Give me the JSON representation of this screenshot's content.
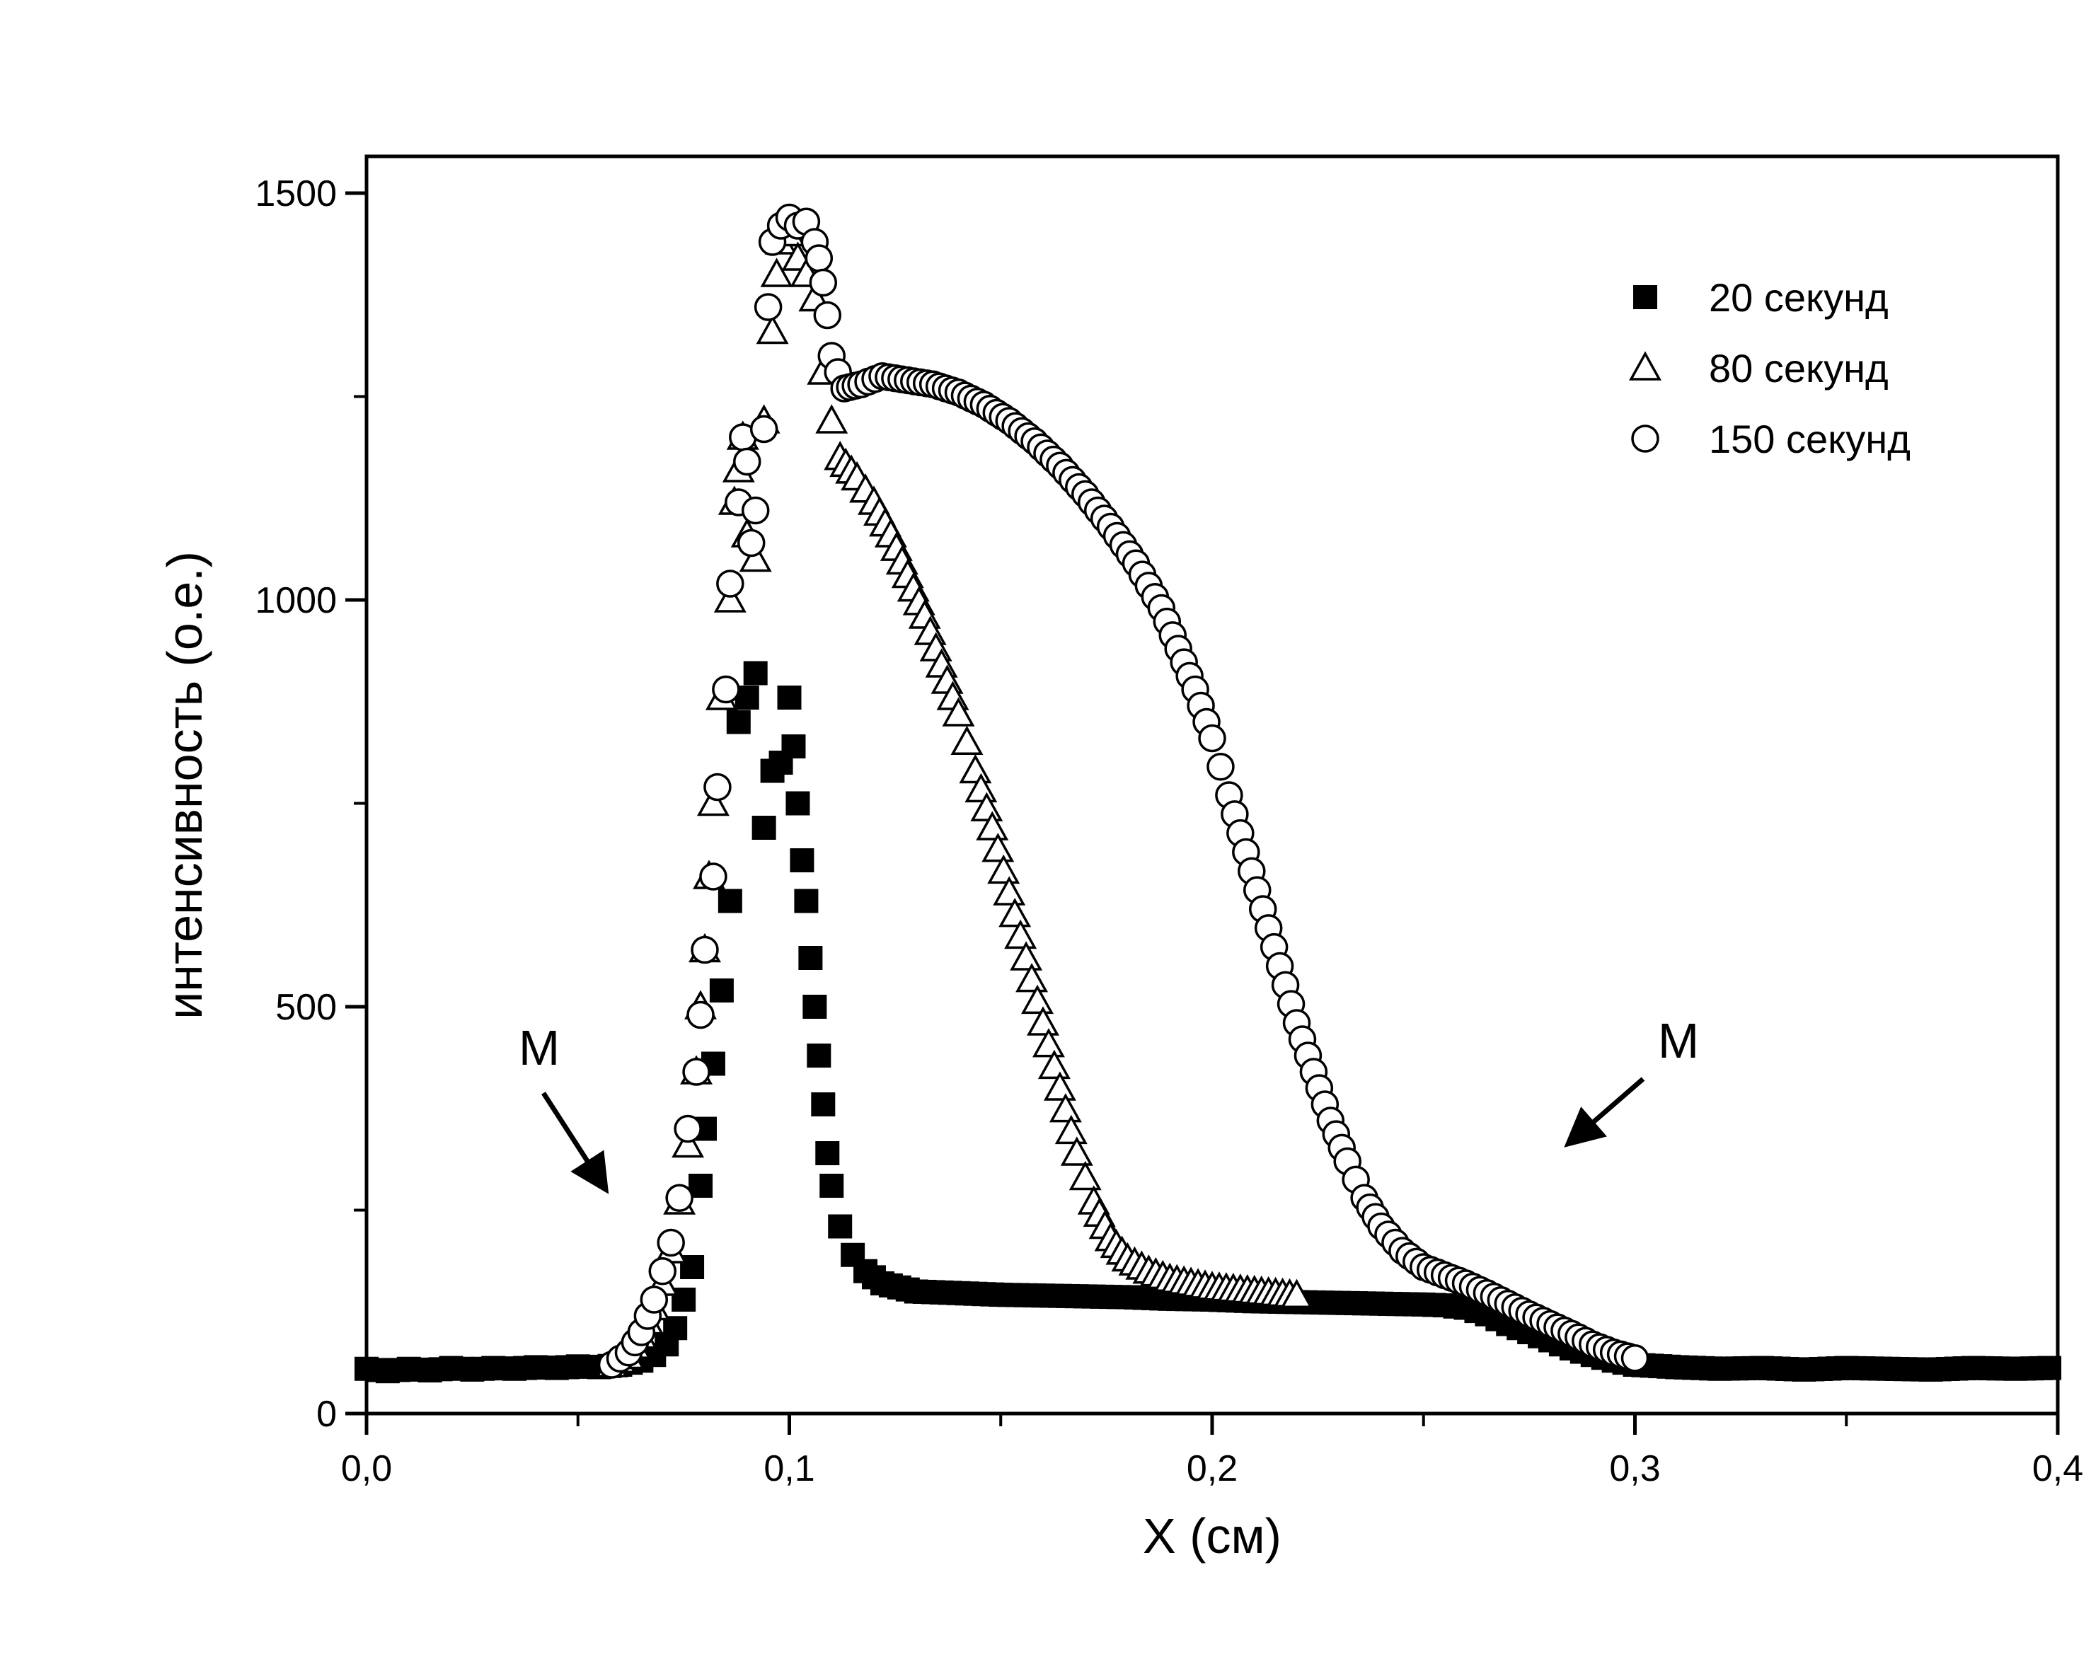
{
  "chart_data": {
    "type": "scatter",
    "title": "",
    "xlabel": "X (см)",
    "ylabel": "интенсивность (о.е.)",
    "xlim": [
      0,
      0.4
    ],
    "ylim": [
      0,
      1550
    ],
    "x_ticks": [
      0,
      0.1,
      0.2,
      0.3,
      0.4
    ],
    "x_tick_labels": [
      "0,0",
      "0,1",
      "0,2",
      "0,3",
      "0,4"
    ],
    "x_minor_ticks": [
      0.05,
      0.15,
      0.25,
      0.35
    ],
    "y_ticks": [
      0,
      500,
      1000,
      1500
    ],
    "y_tick_labels": [
      "0",
      "500",
      "1000",
      "1500"
    ],
    "y_minor_ticks": [
      250,
      750,
      1250
    ],
    "grid": false,
    "legend_position": "top-right",
    "series": [
      {
        "name": "20 секунд",
        "marker": "filled-square",
        "color": "#000000",
        "points": [
          [
            0.0,
            55
          ],
          [
            0.005,
            52
          ],
          [
            0.01,
            55
          ],
          [
            0.015,
            53
          ],
          [
            0.02,
            56
          ],
          [
            0.025,
            54
          ],
          [
            0.03,
            56
          ],
          [
            0.035,
            55
          ],
          [
            0.04,
            57
          ],
          [
            0.045,
            56
          ],
          [
            0.05,
            58
          ],
          [
            0.055,
            57
          ],
          [
            0.06,
            60
          ],
          [
            0.065,
            65
          ],
          [
            0.068,
            72
          ],
          [
            0.071,
            85
          ],
          [
            0.073,
            105
          ],
          [
            0.075,
            140
          ],
          [
            0.077,
            180
          ],
          [
            0.079,
            280
          ],
          [
            0.08,
            350
          ],
          [
            0.082,
            430
          ],
          [
            0.084,
            520
          ],
          [
            0.086,
            630
          ],
          [
            0.088,
            850
          ],
          [
            0.09,
            880
          ],
          [
            0.092,
            910
          ],
          [
            0.094,
            720
          ],
          [
            0.096,
            790
          ],
          [
            0.098,
            800
          ],
          [
            0.1,
            880
          ],
          [
            0.101,
            820
          ],
          [
            0.102,
            750
          ],
          [
            0.103,
            680
          ],
          [
            0.104,
            630
          ],
          [
            0.105,
            560
          ],
          [
            0.106,
            500
          ],
          [
            0.107,
            440
          ],
          [
            0.108,
            380
          ],
          [
            0.109,
            320
          ],
          [
            0.11,
            280
          ],
          [
            0.112,
            230
          ],
          [
            0.115,
            195
          ],
          [
            0.118,
            175
          ],
          [
            0.122,
            160
          ],
          [
            0.13,
            150
          ],
          [
            0.14,
            148
          ],
          [
            0.15,
            146
          ],
          [
            0.16,
            145
          ],
          [
            0.17,
            144
          ],
          [
            0.18,
            143
          ],
          [
            0.19,
            141
          ],
          [
            0.2,
            140
          ],
          [
            0.21,
            138
          ],
          [
            0.22,
            137
          ],
          [
            0.23,
            136
          ],
          [
            0.24,
            135
          ],
          [
            0.25,
            134
          ],
          [
            0.255,
            133
          ],
          [
            0.26,
            130
          ],
          [
            0.265,
            122
          ],
          [
            0.27,
            110
          ],
          [
            0.275,
            100
          ],
          [
            0.28,
            90
          ],
          [
            0.285,
            80
          ],
          [
            0.29,
            72
          ],
          [
            0.295,
            65
          ],
          [
            0.3,
            60
          ],
          [
            0.31,
            57
          ],
          [
            0.32,
            55
          ],
          [
            0.33,
            56
          ],
          [
            0.34,
            54
          ],
          [
            0.35,
            56
          ],
          [
            0.36,
            55
          ],
          [
            0.37,
            54
          ],
          [
            0.38,
            56
          ],
          [
            0.39,
            55
          ],
          [
            0.398,
            56
          ]
        ]
      },
      {
        "name": "80 секунд",
        "marker": "open-triangle",
        "color": "#000000",
        "points": [
          [
            0.058,
            60
          ],
          [
            0.062,
            70
          ],
          [
            0.065,
            95
          ],
          [
            0.068,
            130
          ],
          [
            0.07,
            160
          ],
          [
            0.072,
            200
          ],
          [
            0.074,
            260
          ],
          [
            0.076,
            330
          ],
          [
            0.078,
            420
          ],
          [
            0.079,
            500
          ],
          [
            0.08,
            570
          ],
          [
            0.081,
            660
          ],
          [
            0.082,
            750
          ],
          [
            0.084,
            880
          ],
          [
            0.086,
            1000
          ],
          [
            0.087,
            1120
          ],
          [
            0.088,
            1160
          ],
          [
            0.089,
            1200
          ],
          [
            0.09,
            1080
          ],
          [
            0.092,
            1050
          ],
          [
            0.094,
            1220
          ],
          [
            0.096,
            1330
          ],
          [
            0.097,
            1400
          ],
          [
            0.098,
            1440
          ],
          [
            0.099,
            1460
          ],
          [
            0.1,
            1450
          ],
          [
            0.102,
            1420
          ],
          [
            0.104,
            1400
          ],
          [
            0.106,
            1370
          ],
          [
            0.108,
            1280
          ],
          [
            0.11,
            1220
          ],
          [
            0.112,
            1175
          ],
          [
            0.116,
            1150
          ],
          [
            0.12,
            1120
          ],
          [
            0.124,
            1080
          ],
          [
            0.128,
            1030
          ],
          [
            0.132,
            980
          ],
          [
            0.136,
            920
          ],
          [
            0.14,
            860
          ],
          [
            0.144,
            790
          ],
          [
            0.148,
            720
          ],
          [
            0.152,
            640
          ],
          [
            0.156,
            560
          ],
          [
            0.16,
            480
          ],
          [
            0.164,
            400
          ],
          [
            0.168,
            320
          ],
          [
            0.172,
            260
          ],
          [
            0.176,
            215
          ],
          [
            0.18,
            190
          ],
          [
            0.185,
            175
          ],
          [
            0.19,
            165
          ],
          [
            0.2,
            155
          ],
          [
            0.21,
            150
          ],
          [
            0.22,
            145
          ]
        ]
      },
      {
        "name": "150 секунд",
        "marker": "open-circle",
        "color": "#000000",
        "points": [
          [
            0.058,
            60
          ],
          [
            0.062,
            75
          ],
          [
            0.065,
            100
          ],
          [
            0.068,
            140
          ],
          [
            0.07,
            175
          ],
          [
            0.072,
            210
          ],
          [
            0.074,
            265
          ],
          [
            0.076,
            350
          ],
          [
            0.078,
            420
          ],
          [
            0.079,
            490
          ],
          [
            0.08,
            570
          ],
          [
            0.082,
            660
          ],
          [
            0.083,
            770
          ],
          [
            0.085,
            890
          ],
          [
            0.086,
            1020
          ],
          [
            0.088,
            1120
          ],
          [
            0.089,
            1200
          ],
          [
            0.09,
            1170
          ],
          [
            0.091,
            1070
          ],
          [
            0.092,
            1110
          ],
          [
            0.094,
            1210
          ],
          [
            0.095,
            1360
          ],
          [
            0.096,
            1440
          ],
          [
            0.098,
            1460
          ],
          [
            0.1,
            1470
          ],
          [
            0.102,
            1460
          ],
          [
            0.104,
            1465
          ],
          [
            0.106,
            1440
          ],
          [
            0.107,
            1420
          ],
          [
            0.108,
            1390
          ],
          [
            0.109,
            1350
          ],
          [
            0.11,
            1300
          ],
          [
            0.113,
            1260
          ],
          [
            0.117,
            1265
          ],
          [
            0.122,
            1275
          ],
          [
            0.128,
            1270
          ],
          [
            0.134,
            1265
          ],
          [
            0.14,
            1255
          ],
          [
            0.146,
            1240
          ],
          [
            0.152,
            1220
          ],
          [
            0.158,
            1195
          ],
          [
            0.164,
            1165
          ],
          [
            0.17,
            1130
          ],
          [
            0.176,
            1090
          ],
          [
            0.182,
            1045
          ],
          [
            0.188,
            990
          ],
          [
            0.192,
            940
          ],
          [
            0.196,
            890
          ],
          [
            0.2,
            830
          ],
          [
            0.204,
            760
          ],
          [
            0.208,
            690
          ],
          [
            0.212,
            620
          ],
          [
            0.216,
            550
          ],
          [
            0.22,
            480
          ],
          [
            0.224,
            420
          ],
          [
            0.228,
            360
          ],
          [
            0.232,
            310
          ],
          [
            0.236,
            265
          ],
          [
            0.24,
            230
          ],
          [
            0.245,
            200
          ],
          [
            0.25,
            180
          ],
          [
            0.255,
            170
          ],
          [
            0.26,
            160
          ],
          [
            0.265,
            148
          ],
          [
            0.27,
            135
          ],
          [
            0.275,
            122
          ],
          [
            0.28,
            110
          ],
          [
            0.285,
            98
          ],
          [
            0.29,
            85
          ],
          [
            0.295,
            75
          ],
          [
            0.3,
            68
          ]
        ]
      }
    ],
    "annotations": [
      {
        "text": "M",
        "target_x": 0.056,
        "target_y": 280
      },
      {
        "text": "M",
        "target_x": 0.285,
        "target_y": 335
      }
    ]
  }
}
